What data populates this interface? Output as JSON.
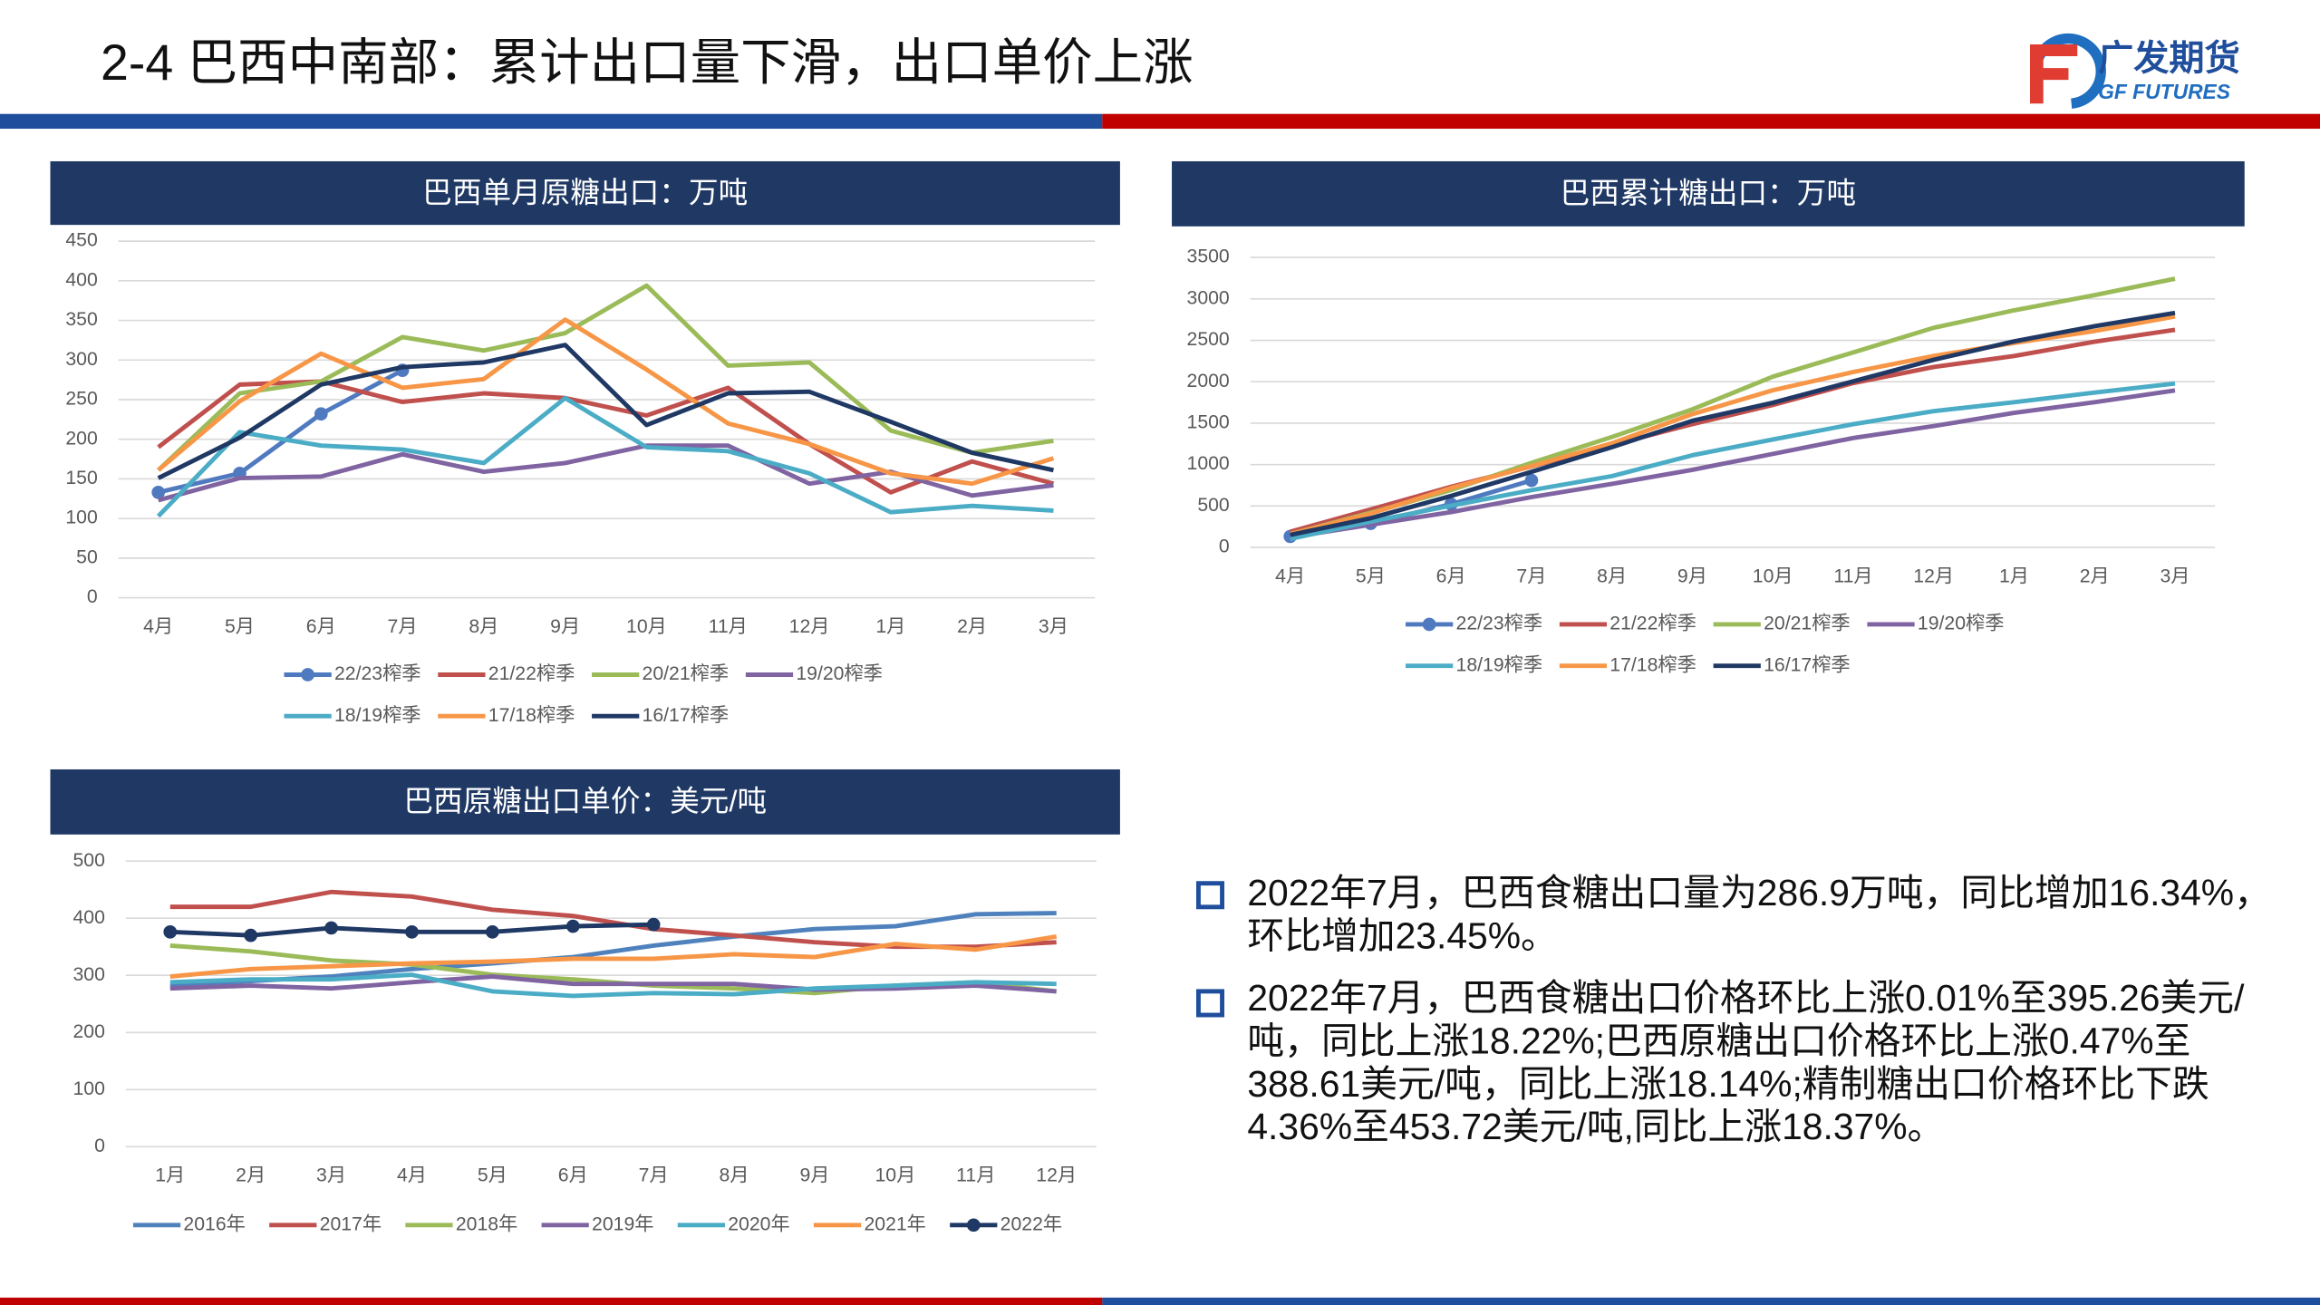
{
  "header": {
    "title": "2-4 巴西中南部：累计出口量下滑，出口单价上涨",
    "logo_cn": "广发期货",
    "logo_en": "GF FUTURES"
  },
  "chart_data": [
    {
      "type": "line",
      "title": "巴西单月原糖出口：万吨",
      "categories": [
        "4月",
        "5月",
        "6月",
        "7月",
        "8月",
        "9月",
        "10月",
        "11月",
        "12月",
        "1月",
        "2月",
        "3月"
      ],
      "ylim": [
        0,
        450
      ],
      "yticks": [
        0,
        50,
        100,
        150,
        200,
        250,
        300,
        350,
        400,
        450
      ],
      "grid": true,
      "series": [
        {
          "name": "22/23榨季",
          "color": "#4f7ac0",
          "marker": true,
          "values": [
            133,
            157,
            232,
            287,
            null,
            null,
            null,
            null,
            null,
            null,
            null,
            null
          ]
        },
        {
          "name": "21/22榨季",
          "color": "#c0504d",
          "values": [
            190,
            269,
            273,
            247,
            258,
            252,
            230,
            265,
            194,
            133,
            172,
            144
          ]
        },
        {
          "name": "20/21榨季",
          "color": "#9bbb59",
          "values": [
            161,
            258,
            273,
            329,
            312,
            334,
            394,
            293,
            297,
            211,
            183,
            198
          ]
        },
        {
          "name": "19/20榨季",
          "color": "#8064a2",
          "values": [
            123,
            151,
            153,
            181,
            159,
            170,
            192,
            192,
            144,
            159,
            129,
            142
          ]
        },
        {
          "name": "18/19榨季",
          "color": "#4bacc6",
          "values": [
            103,
            209,
            192,
            187,
            170,
            252,
            190,
            185,
            157,
            108,
            116,
            110
          ]
        },
        {
          "name": "17/18榨季",
          "color": "#f79646",
          "values": [
            161,
            248,
            308,
            265,
            276,
            351,
            288,
            220,
            194,
            157,
            144,
            176
          ]
        },
        {
          "name": "16/17榨季",
          "color": "#1f3864",
          "values": [
            151,
            202,
            269,
            291,
            297,
            319,
            218,
            258,
            260,
            222,
            183,
            161
          ]
        }
      ]
    },
    {
      "type": "line",
      "title": "巴西累计糖出口：万吨",
      "categories": [
        "4月",
        "5月",
        "6月",
        "7月",
        "8月",
        "9月",
        "10月",
        "11月",
        "12月",
        "1月",
        "2月",
        "3月"
      ],
      "ylim": [
        0,
        3500
      ],
      "yticks": [
        0,
        500,
        1000,
        1500,
        2000,
        2500,
        3000,
        3500
      ],
      "grid": true,
      "series": [
        {
          "name": "22/23榨季",
          "color": "#4f7ac0",
          "marker": true,
          "values": [
            133,
            290,
            522,
            809,
            null,
            null,
            null,
            null,
            null,
            null,
            null,
            null
          ]
        },
        {
          "name": "21/22榨季",
          "color": "#c0504d",
          "values": [
            190,
            459,
            732,
            979,
            1237,
            1489,
            1719,
            1984,
            2178,
            2311,
            2483,
            2627
          ]
        },
        {
          "name": "20/21榨季",
          "color": "#9bbb59",
          "values": [
            161,
            419,
            692,
            1021,
            1333,
            1667,
            2061,
            2354,
            2651,
            2862,
            3045,
            3243
          ]
        },
        {
          "name": "19/20榨季",
          "color": "#8064a2",
          "values": [
            123,
            274,
            427,
            608,
            767,
            937,
            1129,
            1321,
            1465,
            1624,
            1753,
            1895
          ]
        },
        {
          "name": "18/19榨季",
          "color": "#4bacc6",
          "values": [
            103,
            312,
            504,
            691,
            861,
            1113,
            1303,
            1488,
            1645,
            1753,
            1869,
            1979
          ]
        },
        {
          "name": "17/18榨季",
          "color": "#f79646",
          "values": [
            161,
            409,
            717,
            982,
            1258,
            1609,
            1897,
            2117,
            2311,
            2468,
            2612,
            2788
          ]
        },
        {
          "name": "16/17榨季",
          "color": "#1f3864",
          "values": [
            151,
            353,
            622,
            913,
            1210,
            1529,
            1747,
            2005,
            2265,
            2487,
            2670,
            2831
          ]
        }
      ]
    },
    {
      "type": "line",
      "title": "巴西原糖出口单价：美元/吨",
      "categories": [
        "1月",
        "2月",
        "3月",
        "4月",
        "5月",
        "6月",
        "7月",
        "8月",
        "9月",
        "10月",
        "11月",
        "12月"
      ],
      "ylim": [
        0,
        500
      ],
      "yticks": [
        0,
        100,
        200,
        300,
        400,
        500
      ],
      "grid": true,
      "series": [
        {
          "name": "2016年",
          "color": "#4f81bd",
          "values": [
            282,
            290,
            298,
            311,
            321,
            332,
            352,
            368,
            381,
            386,
            407,
            409
          ]
        },
        {
          "name": "2017年",
          "color": "#c0504d",
          "values": [
            420,
            420,
            446,
            438,
            415,
            404,
            381,
            370,
            358,
            350,
            350,
            358
          ]
        },
        {
          "name": "2018年",
          "color": "#9bbb59",
          "values": [
            352,
            342,
            326,
            319,
            301,
            293,
            282,
            277,
            269,
            282,
            288,
            272
          ]
        },
        {
          "name": "2019年",
          "color": "#8064a2",
          "values": [
            277,
            282,
            277,
            288,
            298,
            285,
            285,
            285,
            275,
            277,
            282,
            272
          ]
        },
        {
          "name": "2020年",
          "color": "#4bacc6",
          "values": [
            288,
            293,
            293,
            301,
            272,
            264,
            269,
            267,
            277,
            282,
            288,
            285
          ]
        },
        {
          "name": "2021年",
          "color": "#f79646",
          "values": [
            298,
            311,
            316,
            321,
            324,
            329,
            329,
            337,
            332,
            355,
            345,
            368
          ]
        },
        {
          "name": "2022年",
          "color": "#1f3864",
          "marker": true,
          "values": [
            376,
            370,
            383,
            376,
            376,
            386,
            389,
            null,
            null,
            null,
            null,
            null
          ]
        }
      ]
    }
  ],
  "bullets": [
    "2022年7月，巴西食糖出口量为286.9万吨，同比增加16.34%，环比增加23.45%。",
    "2022年7月，巴西食糖出口价格环比上涨0.01%至395.26美元/吨，同比上涨18.22%;巴西原糖出口价格环比上涨0.47%至388.61美元/吨，同比上涨18.14%;精制糖出口价格环比下跌4.36%至453.72美元/吨,同比上涨18.37%。"
  ]
}
